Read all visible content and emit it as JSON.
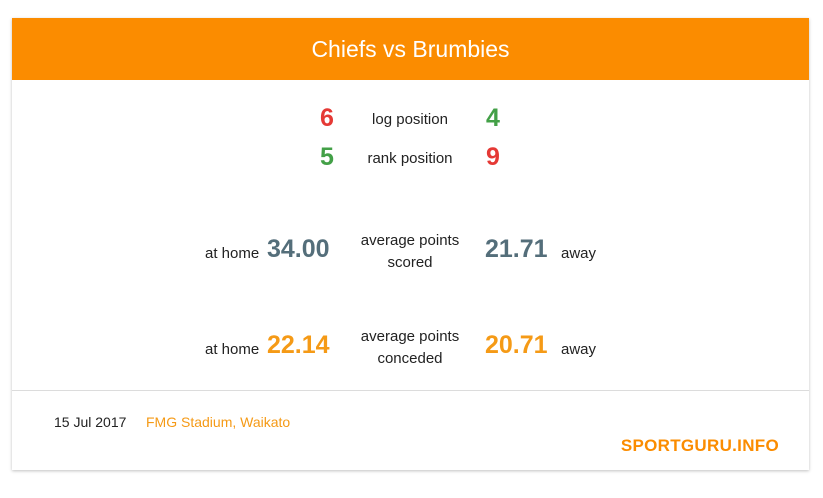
{
  "header": {
    "title": "Chiefs vs Brumbies"
  },
  "log": {
    "home": "6",
    "label": "log position",
    "away": "4"
  },
  "rank": {
    "home": "5",
    "label": "rank position",
    "away": "9"
  },
  "scored": {
    "home_prefix": "at home",
    "home_value": "34.00",
    "label_line1": "average points",
    "label_line2": "scored",
    "away_value": "21.71",
    "away_suffix": "away"
  },
  "conceded": {
    "home_prefix": "at home",
    "home_value": "22.14",
    "label_line1": "average points",
    "label_line2": "conceded",
    "away_value": "20.71",
    "away_suffix": "away"
  },
  "footer": {
    "date": "15 Jul 2017",
    "venue": "FMG Stadium, Waikato",
    "brand": "SPORTGURU.INFO"
  },
  "colors": {
    "header": "#fb8c00",
    "better": "#43a047",
    "worse": "#e53935",
    "scored": "#546e7a",
    "conceded": "#f59a16"
  }
}
